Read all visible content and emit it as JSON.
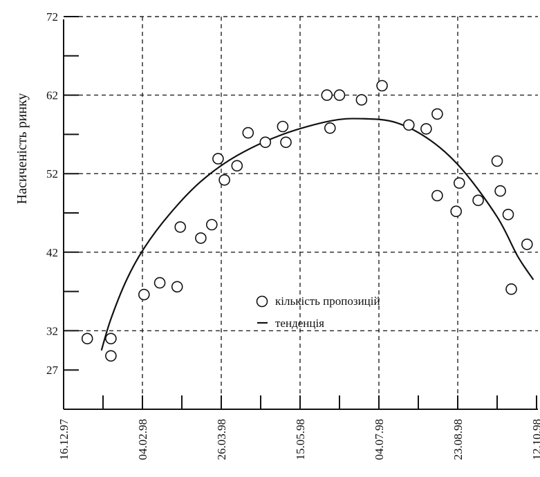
{
  "chart_data": {
    "type": "scatter",
    "ylabel": "Насиченість ринку",
    "y_ticks": [
      27,
      32,
      42,
      52,
      62,
      72
    ],
    "y_range": [
      22,
      72
    ],
    "x_ticks": [
      "16.12.97",
      "04.02.98",
      "26.03.98",
      "15.05.98",
      "04.07.98",
      "23.08.98",
      "12.10.98"
    ],
    "x_range": [
      "1997-12-16",
      "1998-10-12"
    ],
    "grid": true,
    "legend": {
      "position": "center-right",
      "entries": [
        {
          "marker": "circle",
          "label": "кількість пропозицій"
        },
        {
          "marker": "line",
          "label": "тенденція"
        }
      ]
    },
    "series": [
      {
        "name": "кількість пропозицій",
        "kind": "points",
        "points": [
          {
            "x": "1997-12-31",
            "y": 31.0
          },
          {
            "x": "1998-01-15",
            "y": 31.0
          },
          {
            "x": "1998-01-15",
            "y": 28.8
          },
          {
            "x": "1998-02-05",
            "y": 36.6
          },
          {
            "x": "1998-02-15",
            "y": 38.1
          },
          {
            "x": "1998-02-26",
            "y": 37.6
          },
          {
            "x": "1998-02-28",
            "y": 45.2
          },
          {
            "x": "1998-03-13",
            "y": 43.8
          },
          {
            "x": "1998-03-20",
            "y": 45.5
          },
          {
            "x": "1998-03-24",
            "y": 53.9
          },
          {
            "x": "1998-03-28",
            "y": 51.2
          },
          {
            "x": "1998-04-05",
            "y": 53.0
          },
          {
            "x": "1998-04-12",
            "y": 57.2
          },
          {
            "x": "1998-04-23",
            "y": 56.0
          },
          {
            "x": "1998-05-04",
            "y": 58.0
          },
          {
            "x": "1998-05-06",
            "y": 56.0
          },
          {
            "x": "1998-06-01",
            "y": 62.0
          },
          {
            "x": "1998-06-03",
            "y": 57.8
          },
          {
            "x": "1998-06-09",
            "y": 62.0
          },
          {
            "x": "1998-06-23",
            "y": 61.4
          },
          {
            "x": "1998-07-06",
            "y": 63.2
          },
          {
            "x": "1998-07-23",
            "y": 58.2
          },
          {
            "x": "1998-08-03",
            "y": 57.7
          },
          {
            "x": "1998-08-10",
            "y": 59.6
          },
          {
            "x": "1998-08-10",
            "y": 49.2
          },
          {
            "x": "1998-08-22",
            "y": 47.2
          },
          {
            "x": "1998-08-24",
            "y": 50.8
          },
          {
            "x": "1998-09-05",
            "y": 48.6
          },
          {
            "x": "1998-09-17",
            "y": 53.6
          },
          {
            "x": "1998-09-19",
            "y": 49.8
          },
          {
            "x": "1998-09-24",
            "y": 46.8
          },
          {
            "x": "1998-09-26",
            "y": 37.3
          },
          {
            "x": "1998-10-06",
            "y": 43.0
          }
        ]
      },
      {
        "name": "тенденція",
        "kind": "curve",
        "points": [
          {
            "x": "1998-01-09",
            "y": 29.5
          },
          {
            "x": "1998-01-15",
            "y": 33.5
          },
          {
            "x": "1998-01-25",
            "y": 38.5
          },
          {
            "x": "1998-02-05",
            "y": 42.5
          },
          {
            "x": "1998-02-21",
            "y": 46.8
          },
          {
            "x": "1998-03-13",
            "y": 51.0
          },
          {
            "x": "1998-04-05",
            "y": 54.3
          },
          {
            "x": "1998-05-04",
            "y": 57.0
          },
          {
            "x": "1998-06-03",
            "y": 58.7
          },
          {
            "x": "1998-06-23",
            "y": 59.0
          },
          {
            "x": "1998-07-15",
            "y": 58.5
          },
          {
            "x": "1998-08-06",
            "y": 56.2
          },
          {
            "x": "1998-08-26",
            "y": 52.5
          },
          {
            "x": "1998-09-17",
            "y": 46.5
          },
          {
            "x": "1998-09-30",
            "y": 41.5
          },
          {
            "x": "1998-10-10",
            "y": 38.5
          }
        ]
      }
    ]
  }
}
